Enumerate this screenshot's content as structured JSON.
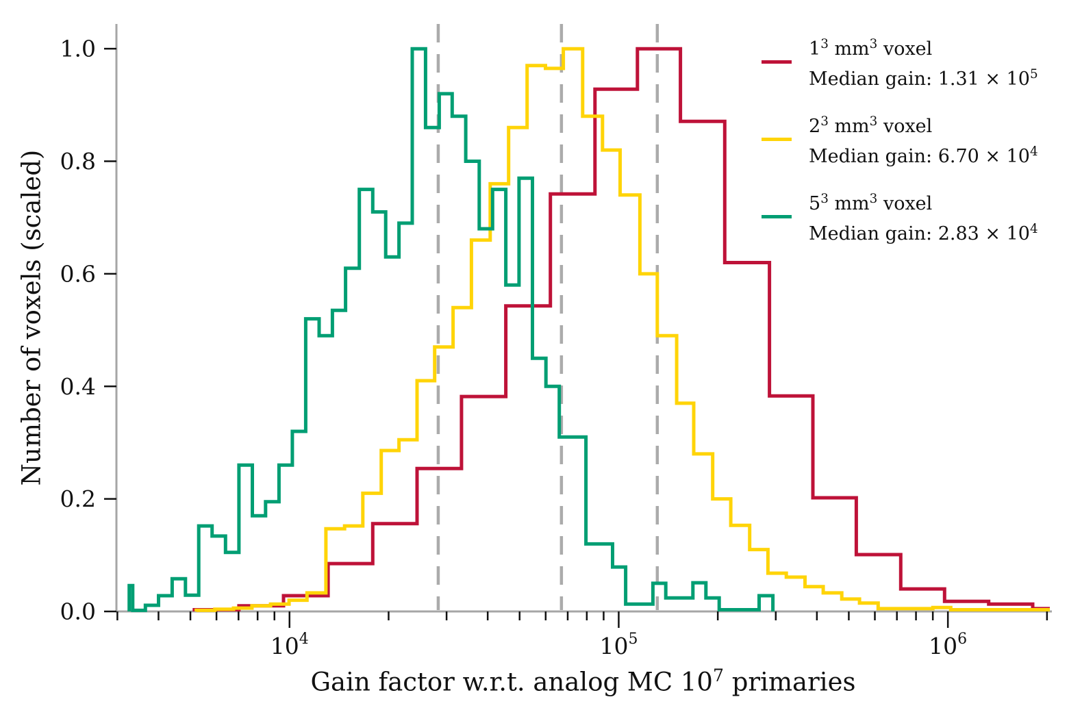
{
  "style": {
    "background": "#ffffff",
    "spine_color": "#A6A6A6",
    "tick_color": "#111111",
    "dash_color": "#ABABAB",
    "histogram_line_width": 5,
    "dash_width": 4.5,
    "dash_pattern": [
      27,
      17
    ]
  },
  "axes": {
    "x_scale": "log",
    "grid": false,
    "xlim": [
      2980,
      2040000
    ],
    "ylim": [
      0,
      1.044
    ],
    "xlabel_html": "Gain factor w.r.t. analog MC 10<sup>7</sup> primaries",
    "ylabel": "Number of voxels (scaled)",
    "x_major_ticks": [
      {
        "value": 10000,
        "base": "10",
        "exponent": "4"
      },
      {
        "value": 100000,
        "base": "10",
        "exponent": "5"
      },
      {
        "value": 1000000,
        "base": "10",
        "exponent": "6"
      }
    ],
    "y_ticks": [
      0.0,
      0.2,
      0.4,
      0.6,
      0.8,
      1.0
    ],
    "legend_position": "upper right"
  },
  "chart_data": {
    "type": "step-histogram",
    "title": "",
    "xlabel": "Gain factor w.r.t. analog MC 10^7 primaries",
    "ylabel": "Number of voxels (scaled)",
    "series": [
      {
        "name": "voxel-1mm",
        "color": "#BE1238",
        "legend": {
          "line1": "1<sup>3</sup> mm<sup>3</sup> voxel",
          "line2": "Median gain: 1.31 × 10<sup>5</sup>"
        },
        "median_gain": 131000,
        "bin_edges": [
          5140,
          7020,
          9590,
          13100,
          17900,
          24400,
          33300,
          45400,
          62000,
          84700,
          114000,
          154000,
          210000,
          287000,
          389000,
          527000,
          719000,
          977000,
          1330000,
          1810000,
          2040000
        ],
        "values": [
          0.003,
          0.01,
          0.028,
          0.085,
          0.156,
          0.254,
          0.382,
          0.543,
          0.742,
          0.928,
          1.0,
          0.871,
          0.62,
          0.383,
          0.202,
          0.101,
          0.04,
          0.018,
          0.013,
          0.005
        ]
      },
      {
        "name": "voxel-2mm",
        "color": "#FFD408",
        "legend": {
          "line1": "2<sup>3</sup> mm<sup>3</sup> voxel",
          "line2": "Median gain: 6.70 × 10<sup>4</sup>"
        },
        "median_gain": 67000,
        "bin_edges": [
          5210,
          5930,
          6760,
          7690,
          8760,
          9970,
          11300,
          12900,
          14700,
          16700,
          19000,
          21500,
          24400,
          27600,
          31400,
          35700,
          40700,
          46300,
          52700,
          59900,
          67900,
          77700,
          89300,
          101000,
          116000,
          131000,
          150000,
          169000,
          193000,
          219000,
          250000,
          284000,
          323000,
          368000,
          418000,
          476000,
          539000,
          614000,
          791000,
          900000,
          1020000,
          2040000
        ],
        "values": [
          0.002,
          0.004,
          0.006,
          0.01,
          0.013,
          0.02,
          0.033,
          0.147,
          0.152,
          0.21,
          0.286,
          0.305,
          0.41,
          0.47,
          0.54,
          0.66,
          0.76,
          0.86,
          0.97,
          0.965,
          1.0,
          0.88,
          0.82,
          0.74,
          0.6,
          0.49,
          0.37,
          0.28,
          0.2,
          0.153,
          0.11,
          0.068,
          0.061,
          0.044,
          0.033,
          0.022,
          0.015,
          0.005,
          0.005,
          0.007,
          0.003
        ]
      },
      {
        "name": "voxel-5mm",
        "color": "#009E73",
        "legend": {
          "line1": "5<sup>3</sup> mm<sup>3</sup> voxel",
          "line2": "Median gain: 2.83 × 10<sup>4</sup>"
        },
        "median_gain": 28300,
        "bin_edges": [
          3260,
          3340,
          3650,
          4000,
          4400,
          4830,
          5300,
          5820,
          6390,
          7020,
          7710,
          8460,
          9290,
          10200,
          11200,
          12300,
          13500,
          14800,
          16300,
          17900,
          19600,
          21500,
          23600,
          25900,
          28500,
          31200,
          34300,
          37700,
          41400,
          45400,
          49800,
          54700,
          60100,
          66000,
          79500,
          95800,
          105000,
          116000,
          127000,
          139000,
          168000,
          184000,
          202000,
          267000,
          294000
        ],
        "values": [
          0.046,
          0.002,
          0.011,
          0.028,
          0.058,
          0.029,
          0.152,
          0.134,
          0.105,
          0.26,
          0.17,
          0.195,
          0.26,
          0.32,
          0.52,
          0.49,
          0.535,
          0.61,
          0.75,
          0.71,
          0.63,
          0.69,
          1.0,
          0.86,
          0.92,
          0.88,
          0.8,
          0.68,
          0.75,
          0.58,
          0.77,
          0.45,
          0.4,
          0.31,
          0.12,
          0.079,
          0.013,
          0.013,
          0.05,
          0.024,
          0.051,
          0.024,
          0.003,
          0.028
        ]
      }
    ]
  }
}
